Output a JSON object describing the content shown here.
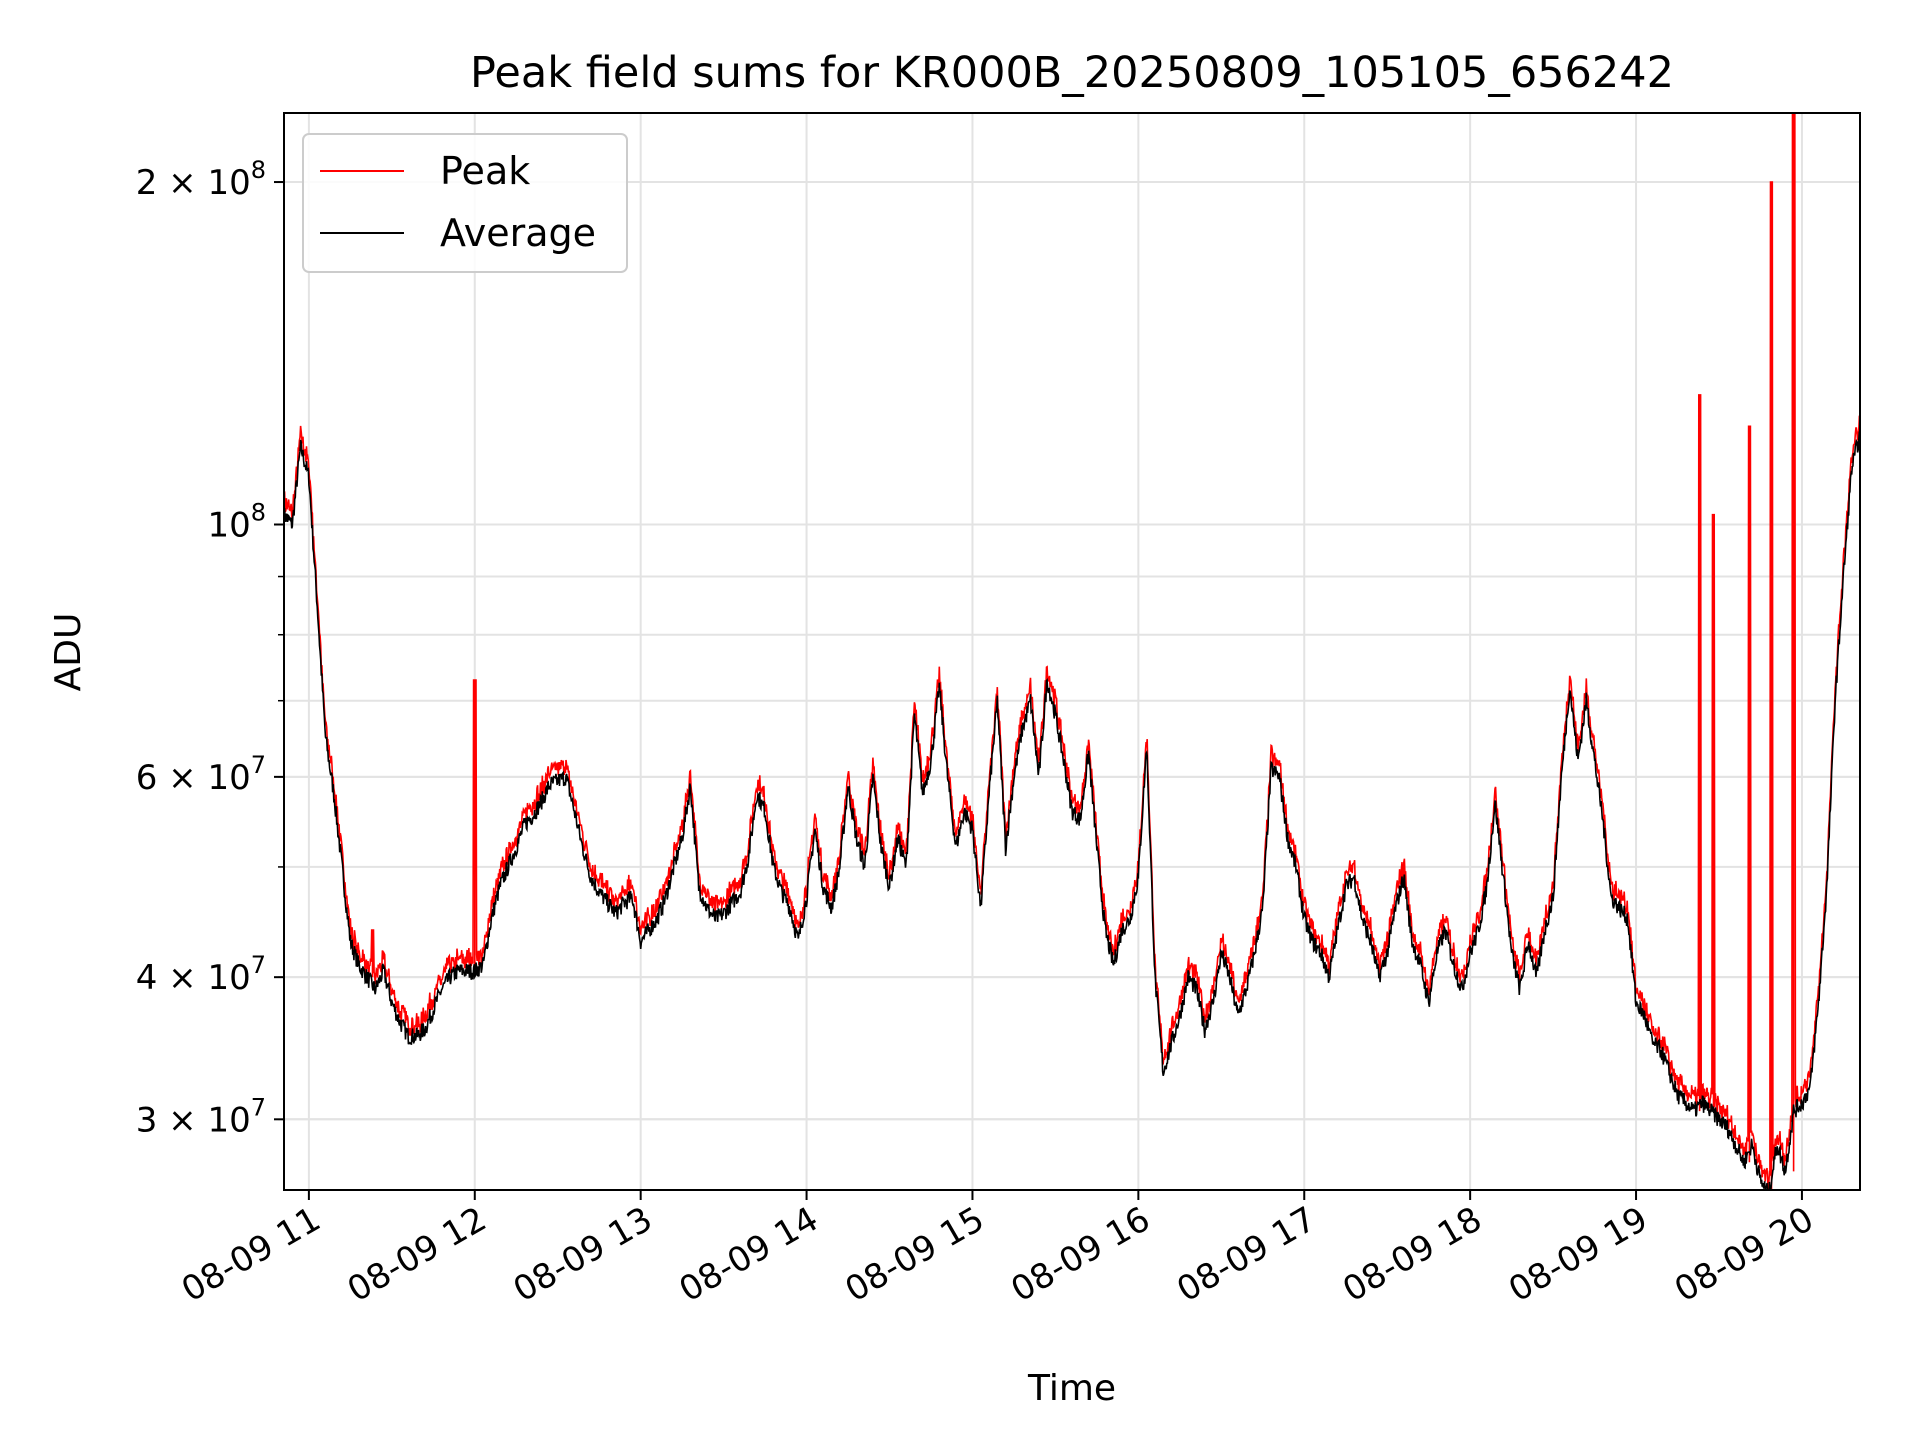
{
  "chart_data": {
    "type": "line",
    "title": "Peak field sums for KR000B_20250809_105105_656242",
    "xlabel": "Time",
    "ylabel": "ADU",
    "xscale": "time",
    "yscale": "log",
    "xlim": [
      "2025-08-09 10:51",
      "2025-08-09 20:21"
    ],
    "ylim": [
      26000000,
      230000000
    ],
    "x_ticks": [
      "08-09 11",
      "08-09 12",
      "08-09 13",
      "08-09 14",
      "08-09 15",
      "08-09 16",
      "08-09 17",
      "08-09 18",
      "08-09 19",
      "08-09 20"
    ],
    "y_ticks": [
      {
        "value": 30000000,
        "mantissa": "3",
        "exponent": "7"
      },
      {
        "value": 40000000,
        "mantissa": "4",
        "exponent": "7"
      },
      {
        "value": 60000000,
        "mantissa": "6",
        "exponent": "7"
      },
      {
        "value": 100000000,
        "mantissa": "",
        "exponent": "8"
      },
      {
        "value": 200000000,
        "mantissa": "2",
        "exponent": "8"
      }
    ],
    "times_symbol": "×",
    "tick_base": "10",
    "grid": true,
    "legend_position": "upper-left",
    "series": [
      {
        "name": "Peak",
        "color": "#ff0000"
      },
      {
        "name": "Average",
        "color": "#000000"
      }
    ],
    "x": [
      "10:51",
      "10:54",
      "10:57",
      "11:00",
      "11:03",
      "11:06",
      "11:09",
      "11:12",
      "11:15",
      "11:18",
      "11:21",
      "11:24",
      "11:27",
      "11:30",
      "11:33",
      "11:36",
      "11:39",
      "11:42",
      "11:45",
      "11:48",
      "11:51",
      "11:54",
      "11:57",
      "12:00",
      "12:03",
      "12:06",
      "12:09",
      "12:12",
      "12:15",
      "12:18",
      "12:21",
      "12:24",
      "12:27",
      "12:30",
      "12:33",
      "12:36",
      "12:39",
      "12:42",
      "12:45",
      "12:48",
      "12:51",
      "12:54",
      "12:57",
      "13:00",
      "13:03",
      "13:06",
      "13:09",
      "13:12",
      "13:15",
      "13:18",
      "13:21",
      "13:24",
      "13:27",
      "13:30",
      "13:33",
      "13:36",
      "13:39",
      "13:42",
      "13:45",
      "13:48",
      "13:51",
      "13:54",
      "13:57",
      "14:00",
      "14:03",
      "14:06",
      "14:09",
      "14:12",
      "14:15",
      "14:18",
      "14:21",
      "14:24",
      "14:27",
      "14:30",
      "14:33",
      "14:36",
      "14:39",
      "14:42",
      "14:45",
      "14:48",
      "14:51",
      "14:54",
      "14:57",
      "15:00",
      "15:03",
      "15:06",
      "15:09",
      "15:12",
      "15:15",
      "15:18",
      "15:21",
      "15:24",
      "15:27",
      "15:30",
      "15:33",
      "15:36",
      "15:39",
      "15:42",
      "15:45",
      "15:48",
      "15:51",
      "15:54",
      "15:57",
      "16:00",
      "16:03",
      "16:06",
      "16:09",
      "16:12",
      "16:15",
      "16:18",
      "16:21",
      "16:24",
      "16:27",
      "16:30",
      "16:33",
      "16:36",
      "16:39",
      "16:42",
      "16:45",
      "16:48",
      "16:51",
      "16:54",
      "16:57",
      "17:00",
      "17:03",
      "17:06",
      "17:09",
      "17:12",
      "17:15",
      "17:18",
      "17:21",
      "17:24",
      "17:27",
      "17:30",
      "17:33",
      "17:36",
      "17:39",
      "17:42",
      "17:45",
      "17:48",
      "17:51",
      "17:54",
      "17:57",
      "18:00",
      "18:03",
      "18:06",
      "18:09",
      "18:12",
      "18:15",
      "18:18",
      "18:21",
      "18:24",
      "18:27",
      "18:30",
      "18:33",
      "18:36",
      "18:39",
      "18:42",
      "18:45",
      "18:48",
      "18:51",
      "18:54",
      "18:57",
      "19:00",
      "19:03",
      "19:06",
      "19:09",
      "19:12",
      "19:15",
      "19:18",
      "19:21",
      "19:24",
      "19:27",
      "19:30",
      "19:33",
      "19:36",
      "19:39",
      "19:42",
      "19:45",
      "19:48",
      "19:51",
      "19:54",
      "19:57",
      "20:00",
      "20:03",
      "20:06",
      "20:09",
      "20:12",
      "20:15",
      "20:18",
      "20:21"
    ],
    "average": [
      102000000,
      100000000,
      117000000,
      110000000,
      85000000,
      65000000,
      58000000,
      50000000,
      43000000,
      41000000,
      40000000,
      39000000,
      40500000,
      38000000,
      36500000,
      35500000,
      35500000,
      36000000,
      37500000,
      39000000,
      40000000,
      40500000,
      40500000,
      40500000,
      41000000,
      45000000,
      48000000,
      50000000,
      52000000,
      54500000,
      55500000,
      57000000,
      59000000,
      59500000,
      60000000,
      56000000,
      52000000,
      49000000,
      47500000,
      46500000,
      45500000,
      46500000,
      47000000,
      43000000,
      44000000,
      45000000,
      47000000,
      50000000,
      53000000,
      59000000,
      48000000,
      46000000,
      45000000,
      45500000,
      46500000,
      47500000,
      51000000,
      58000000,
      56000000,
      50000000,
      47500000,
      46000000,
      43000000,
      47000000,
      54000000,
      48000000,
      46000000,
      50000000,
      59000000,
      53000000,
      50000000,
      60000000,
      52000000,
      48000000,
      53000000,
      50000000,
      68000000,
      58000000,
      62000000,
      72000000,
      60000000,
      52000000,
      56000000,
      54000000,
      46000000,
      58000000,
      70000000,
      52000000,
      60000000,
      66000000,
      70000000,
      60000000,
      73000000,
      68000000,
      62000000,
      56000000,
      55000000,
      63000000,
      52000000,
      44000000,
      41000000,
      44000000,
      45000000,
      49000000,
      64000000,
      40000000,
      33000000,
      35000000,
      37000000,
      40000000,
      39000000,
      36000000,
      38000000,
      42000000,
      40000000,
      37000000,
      39000000,
      42000000,
      46000000,
      61000000,
      60000000,
      53000000,
      50000000,
      45000000,
      43000000,
      42000000,
      40000000,
      44000000,
      48000000,
      49000000,
      45000000,
      43000000,
      40000000,
      42000000,
      46000000,
      49000000,
      43000000,
      41000000,
      38000000,
      42000000,
      44000000,
      41000000,
      39000000,
      42000000,
      44000000,
      48000000,
      57000000,
      49000000,
      42000000,
      39000000,
      43000000,
      40000000,
      44000000,
      47000000,
      60000000,
      72000000,
      62000000,
      70000000,
      62000000,
      55000000,
      47000000,
      46000000,
      45000000,
      38000000,
      37000000,
      35000000,
      34500000,
      33000000,
      31500000,
      31000000,
      30500000,
      31000000,
      30500000,
      30000000,
      29500000,
      28500000,
      27500000,
      28500000,
      26500000,
      25800000,
      28500000,
      27000000,
      30500000,
      31000000,
      32000000,
      38000000,
      48000000,
      70000000,
      90000000,
      112000000,
      120000000
    ]
  }
}
